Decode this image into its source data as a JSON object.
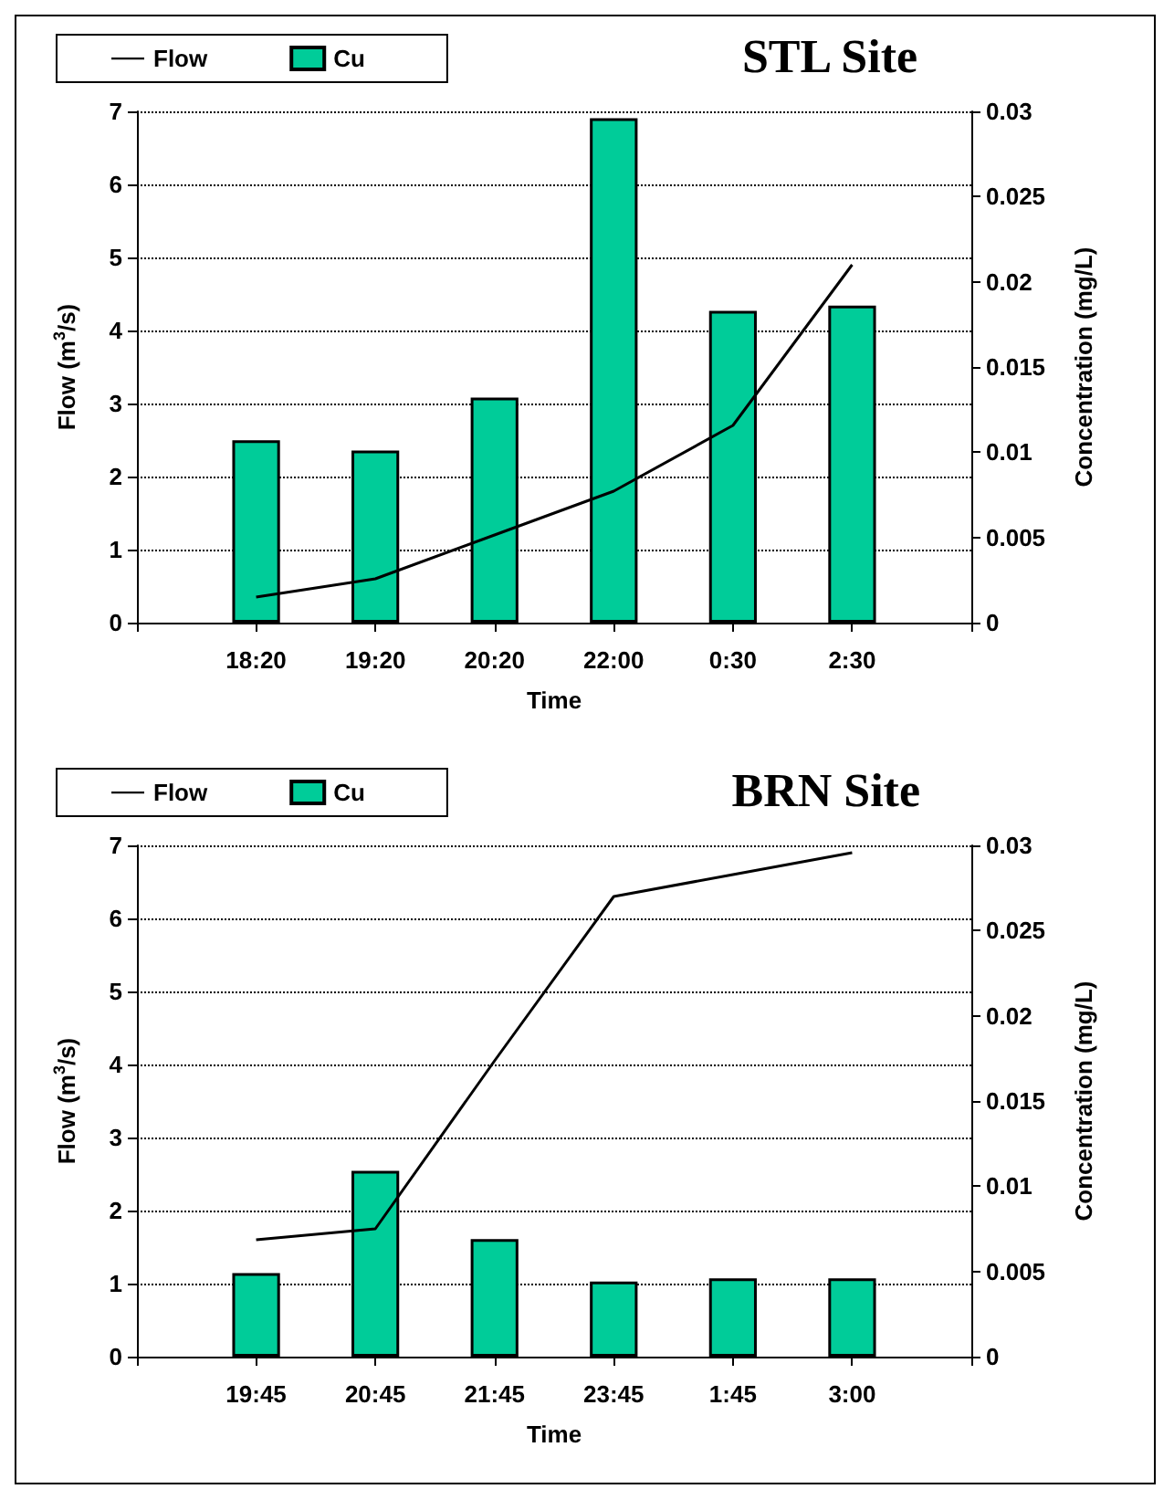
{
  "chart_data": [
    {
      "type": "bar",
      "title": "STL Site",
      "xlabel": "Time",
      "ylabel": "Flow (m$^{3}$/s)",
      "y2label": "Concentration (mg/L)",
      "categories": [
        null,
        "18:20",
        "19:20",
        "20:20",
        "22:00",
        "0:30",
        "2:30",
        null
      ],
      "series": [
        {
          "name": "Flow",
          "type": "line",
          "color": "#000000",
          "values": [
            null,
            0.35,
            0.6,
            1.2,
            1.8,
            2.7,
            4.9,
            null
          ]
        },
        {
          "name": "Cu",
          "type": "bar",
          "axis": "y2",
          "color": "#00cc99",
          "values": [
            null,
            0.0107,
            0.0101,
            0.0132,
            0.0296,
            0.0183,
            0.0186,
            null
          ]
        }
      ],
      "ylim": [
        0,
        7
      ],
      "yticks": [
        0,
        1,
        2,
        3,
        4,
        5,
        6,
        7
      ],
      "y2lim": [
        0,
        0.03
      ],
      "y2ticks": [
        0,
        0.005,
        0.01,
        0.015,
        0.02,
        0.025,
        0.03
      ],
      "grid": "y",
      "legend": "top left",
      "marker": "none",
      "line_style": "solid"
    },
    {
      "type": "bar",
      "title": "BRN Site",
      "xlabel": "Time",
      "ylabel": "Flow (m$^{3}$/s)",
      "y2label": "Concentration (mg/L)",
      "categories": [
        null,
        "19:45",
        "20:45",
        "21:45",
        "23:45",
        "1:45",
        "3:00",
        null
      ],
      "series": [
        {
          "name": "Flow",
          "type": "line",
          "color": "#000000",
          "values": [
            null,
            1.6,
            1.75,
            4.05,
            6.3,
            6.6,
            6.9,
            null
          ]
        },
        {
          "name": "Cu",
          "type": "bar",
          "axis": "y2",
          "color": "#00cc99",
          "values": [
            null,
            0.0049,
            0.0109,
            0.0069,
            0.0044,
            0.0046,
            0.0046,
            null
          ]
        }
      ],
      "ylim": [
        0,
        7
      ],
      "yticks": [
        0,
        1,
        2,
        3,
        4,
        5,
        6,
        7
      ],
      "y2lim": [
        0,
        0.03
      ],
      "y2ticks": [
        0,
        0.005,
        0.01,
        0.015,
        0.02,
        0.025,
        0.03
      ],
      "grid": "y",
      "legend": "top left",
      "marker": "none",
      "line_style": "solid"
    }
  ]
}
